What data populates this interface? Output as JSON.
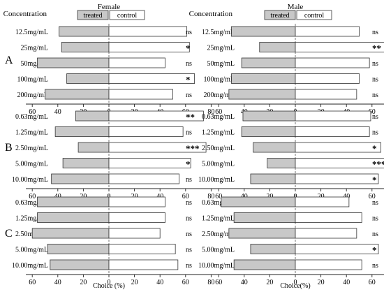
{
  "legend": {
    "treated": "treated",
    "control": "control"
  },
  "colors": {
    "treated": "#c8c8c8",
    "control": "#ffffff",
    "stroke": "#333333"
  },
  "headers": {
    "concentration": "Concentration"
  },
  "panel_letters": [
    "A",
    "B",
    "C"
  ],
  "column_titles": [
    "Female",
    "Male"
  ],
  "xlabels": [
    "Choice (%)",
    "Choice(%)"
  ],
  "tick_labels": [
    "60",
    "40",
    "20",
    "0",
    "20",
    "40",
    "60",
    "80"
  ],
  "chart_data": [
    {
      "type": "bar",
      "panel": "A",
      "sex": "Female",
      "categories": [
        "12.5mg/mL",
        "25mg/mL",
        "50mg/mL",
        "100mg/mL",
        "200mg/mL"
      ],
      "series": [
        {
          "name": "treated",
          "values": [
            39,
            37,
            56,
            33,
            50
          ]
        },
        {
          "name": "control",
          "values": [
            61,
            63,
            44,
            67,
            50
          ]
        }
      ],
      "significance": [
        "ns",
        "*",
        "ns",
        "*",
        "ns"
      ]
    },
    {
      "type": "bar",
      "panel": "A",
      "sex": "Male",
      "categories": [
        "12.5mg/mL",
        "25mg/mL",
        "50mg/mL",
        "100mg/mL",
        "200mg/mL"
      ],
      "series": [
        {
          "name": "treated",
          "values": [
            50,
            28,
            42,
            50,
            52
          ]
        },
        {
          "name": "control",
          "values": [
            50,
            72,
            58,
            50,
            48
          ]
        }
      ],
      "significance": [
        "ns",
        "**",
        "ns",
        "ns",
        "ns"
      ]
    },
    {
      "type": "bar",
      "panel": "B",
      "sex": "Female",
      "categories": [
        "0.63mg/mL",
        "1.25mg/mL",
        "2.50mg/mL",
        "5.00mg/mL",
        "10.00mg/mL"
      ],
      "series": [
        {
          "name": "treated",
          "values": [
            26,
            42,
            24,
            36,
            45
          ]
        },
        {
          "name": "control",
          "values": [
            74,
            58,
            76,
            64,
            55
          ]
        }
      ],
      "significance": [
        "**",
        "ns",
        "***",
        "*",
        "ns"
      ]
    },
    {
      "type": "bar",
      "panel": "B",
      "sex": "Male",
      "categories": [
        "0.63mg/mL",
        "1.25mg/mL",
        "2.50mg/mL",
        "5.00mg/mL",
        "10.00mg/mL"
      ],
      "series": [
        {
          "name": "treated",
          "values": [
            41,
            42,
            33,
            22,
            35
          ]
        },
        {
          "name": "control",
          "values": [
            59,
            58,
            67,
            78,
            65
          ]
        }
      ],
      "significance": [
        "ns",
        "ns",
        "*",
        "***",
        "*"
      ]
    },
    {
      "type": "bar",
      "panel": "C",
      "sex": "Female",
      "categories": [
        "0.63mg/mL",
        "1.25mg/mL",
        "2.50mg/mL",
        "5.00mg/mL",
        "10.00mg/mL"
      ],
      "series": [
        {
          "name": "treated",
          "values": [
            56,
            56,
            60,
            48,
            46
          ]
        },
        {
          "name": "control",
          "values": [
            44,
            44,
            40,
            52,
            54
          ]
        }
      ],
      "significance": [
        "ns",
        "ns",
        "ns",
        "ns",
        "ns"
      ]
    },
    {
      "type": "bar",
      "panel": "C",
      "sex": "Male",
      "categories": [
        "0.63mg/mL",
        "1.25mg/mL",
        "2.50mg/mL",
        "5.00mg/mL",
        "10.00mg/mL"
      ],
      "series": [
        {
          "name": "treated",
          "values": [
            58,
            48,
            52,
            35,
            48
          ]
        },
        {
          "name": "control",
          "values": [
            42,
            52,
            48,
            65,
            52
          ]
        }
      ],
      "significance": [
        "ns",
        "ns",
        "ns",
        "*",
        "ns"
      ]
    }
  ]
}
